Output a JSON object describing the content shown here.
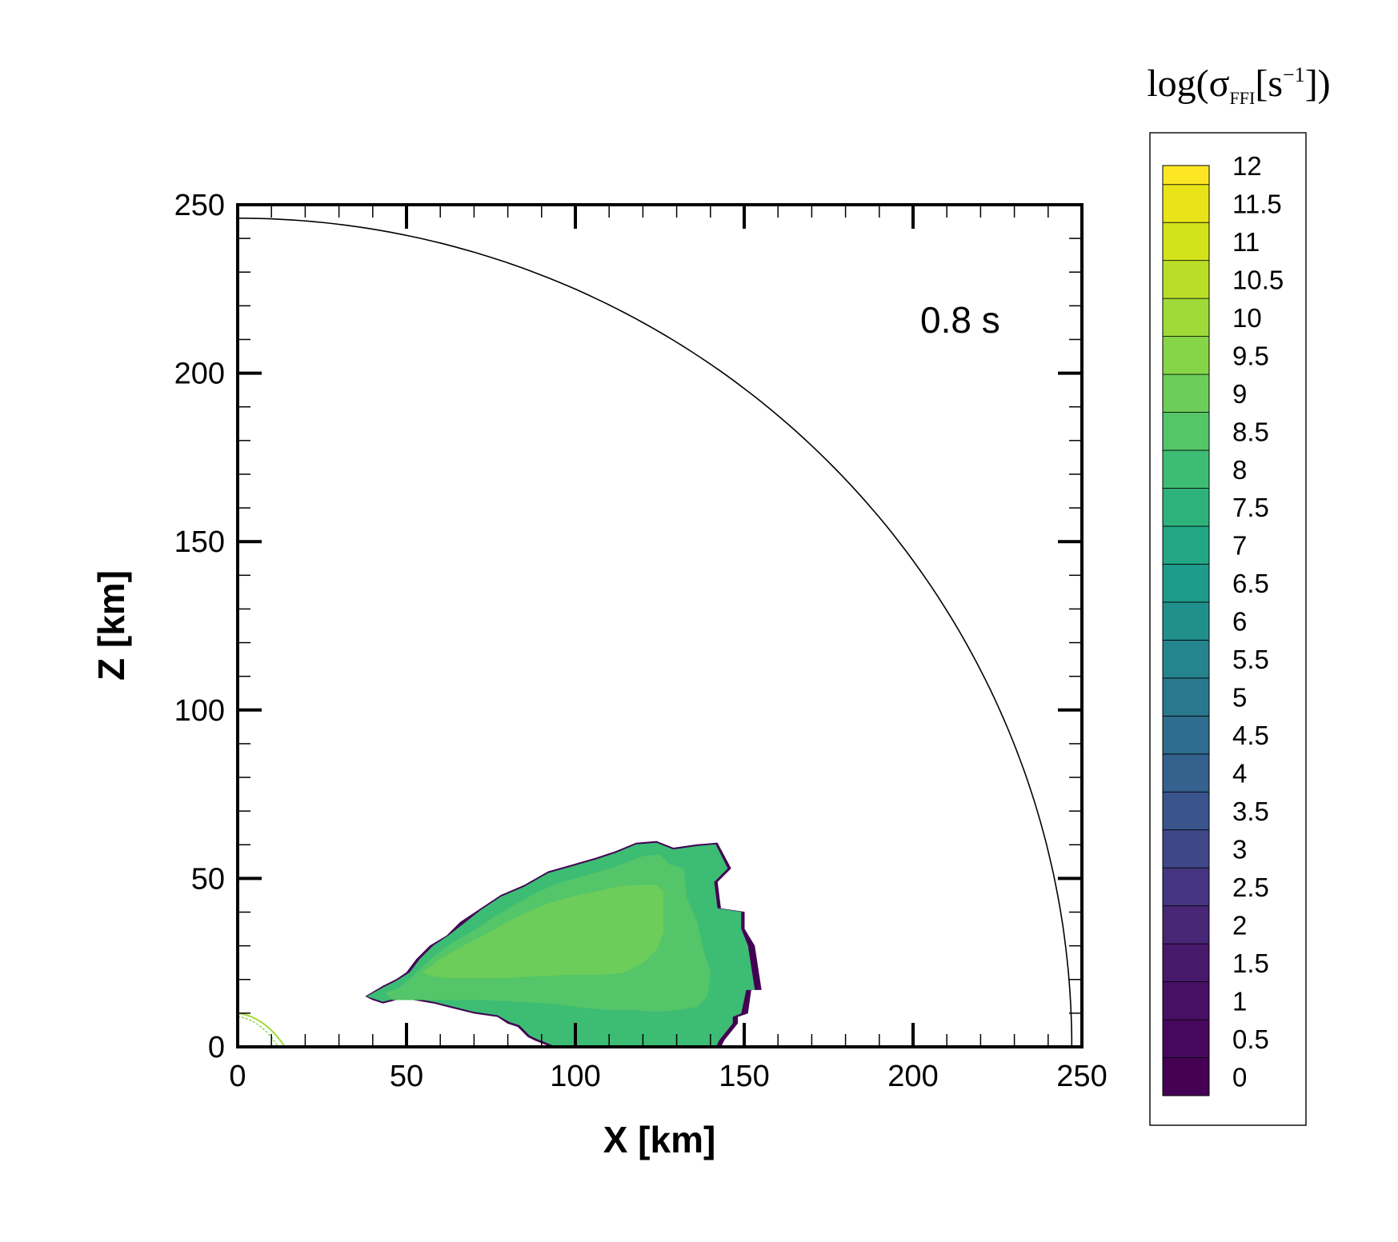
{
  "chart_data": {
    "type": "heatmap",
    "annotation": "0.8 s",
    "xlabel": "X [km]",
    "ylabel": "Z [km]",
    "xlim": [
      0,
      250
    ],
    "ylim": [
      0,
      250
    ],
    "x_ticks": [
      "0",
      "50",
      "100",
      "150",
      "200",
      "250"
    ],
    "y_ticks": [
      "0",
      "50",
      "100",
      "150",
      "200",
      "250"
    ],
    "colorbar": {
      "title": {
        "prefix": "log(",
        "sigma": "σ",
        "sub": "FFI",
        "unit_open": "[s",
        "sup": "−1",
        "unit_close": "])"
      },
      "range": [
        0,
        12.25
      ],
      "step": 0.5,
      "labels": [
        "12",
        "11.5",
        "11",
        "10.5",
        "10",
        "9.5",
        "9",
        "8.5",
        "8",
        "7.5",
        "7",
        "6.5",
        "6",
        "5.5",
        "5",
        "4.5",
        "4",
        "3.5",
        "3",
        "2.5",
        "2",
        "1.5",
        "1",
        "0.5",
        "0"
      ],
      "colors": [
        "#440154",
        "#46085c",
        "#471063",
        "#48186a",
        "#472775",
        "#453581",
        "#3f4788",
        "#3a548c",
        "#34618d",
        "#2e6d8e",
        "#2a788e",
        "#25848e",
        "#21908d",
        "#1e9b8a",
        "#22a785",
        "#2eb27c",
        "#3dbc74",
        "#54c568",
        "#6ccd5a",
        "#86d549",
        "#a0da39",
        "#bade28",
        "#d2e21b",
        "#e8e419",
        "#fde725"
      ]
    },
    "reference_curve": {
      "shape": "quarter-circle",
      "radius_x": 247,
      "radius_z": 246
    },
    "contour_regions": [
      {
        "level": 0,
        "color": "#440154",
        "boundary": [
          [
            38,
            15
          ],
          [
            43,
            18
          ],
          [
            47,
            20
          ],
          [
            50,
            22
          ],
          [
            53,
            26
          ],
          [
            57,
            30
          ],
          [
            62,
            33
          ],
          [
            66,
            37
          ],
          [
            72,
            41
          ],
          [
            78,
            45
          ],
          [
            85,
            48
          ],
          [
            92,
            52
          ],
          [
            99,
            54
          ],
          [
            106,
            56
          ],
          [
            112,
            58
          ],
          [
            118,
            60.5
          ],
          [
            124,
            61
          ],
          [
            129,
            59
          ],
          [
            136,
            60
          ],
          [
            142,
            60.5
          ],
          [
            146,
            53
          ],
          [
            142,
            49
          ],
          [
            143,
            41
          ],
          [
            150,
            40
          ],
          [
            150,
            35
          ],
          [
            153,
            30
          ],
          [
            155,
            17
          ],
          [
            152,
            17
          ],
          [
            151,
            10
          ],
          [
            148,
            9
          ],
          [
            148,
            7
          ],
          [
            144,
            2
          ],
          [
            143,
            0
          ],
          [
            93,
            0
          ],
          [
            88,
            2
          ],
          [
            86,
            3
          ],
          [
            83,
            6
          ],
          [
            80,
            7
          ],
          [
            77,
            9
          ],
          [
            70,
            10
          ],
          [
            62,
            12
          ],
          [
            58,
            13
          ],
          [
            52,
            14
          ],
          [
            47,
            14
          ],
          [
            43,
            13
          ],
          [
            40,
            14
          ]
        ]
      },
      {
        "level": 8,
        "color": "#3dbc74",
        "boundary": [
          [
            38.5,
            15
          ],
          [
            43,
            17.5
          ],
          [
            47,
            19.5
          ],
          [
            51,
            22
          ],
          [
            54,
            26
          ],
          [
            58,
            30
          ],
          [
            62.5,
            33
          ],
          [
            67,
            36.5
          ],
          [
            72,
            40.5
          ],
          [
            78,
            44.5
          ],
          [
            85,
            47.5
          ],
          [
            92,
            51.5
          ],
          [
            99,
            53.5
          ],
          [
            106,
            55.5
          ],
          [
            112,
            57.5
          ],
          [
            118,
            60
          ],
          [
            124,
            60.5
          ],
          [
            129,
            58.5
          ],
          [
            136,
            59.5
          ],
          [
            141.5,
            60
          ],
          [
            145,
            53
          ],
          [
            141,
            49
          ],
          [
            142,
            41
          ],
          [
            149,
            40
          ],
          [
            149,
            35
          ],
          [
            151,
            30
          ],
          [
            153,
            17
          ],
          [
            150.5,
            17
          ],
          [
            149,
            10
          ],
          [
            146.5,
            9
          ],
          [
            146.5,
            7
          ],
          [
            142.5,
            2
          ],
          [
            141.5,
            0
          ],
          [
            93.5,
            0.5
          ],
          [
            88.5,
            2.5
          ],
          [
            86.5,
            3.5
          ],
          [
            83.5,
            6.5
          ],
          [
            80.5,
            7.5
          ],
          [
            77,
            9.5
          ],
          [
            70,
            10.5
          ],
          [
            62,
            12.5
          ],
          [
            58,
            13.5
          ],
          [
            52,
            14.5
          ],
          [
            47,
            14.5
          ],
          [
            43,
            13.5
          ],
          [
            40,
            14.5
          ]
        ]
      },
      {
        "level": 9,
        "color": "#54c568",
        "boundary": [
          [
            44,
            16
          ],
          [
            48,
            17.5
          ],
          [
            51,
            20
          ],
          [
            55,
            24
          ],
          [
            59,
            27.5
          ],
          [
            64,
            31
          ],
          [
            70,
            34.5
          ],
          [
            76,
            38.5
          ],
          [
            82,
            42
          ],
          [
            88,
            45.5
          ],
          [
            95,
            48.5
          ],
          [
            102,
            50.5
          ],
          [
            109,
            52.5
          ],
          [
            115,
            54.5
          ],
          [
            120,
            56.5
          ],
          [
            125,
            57
          ],
          [
            128,
            54
          ],
          [
            132,
            53
          ],
          [
            133,
            44
          ],
          [
            136,
            37
          ],
          [
            138,
            28
          ],
          [
            140,
            22
          ],
          [
            139,
            15
          ],
          [
            136,
            12
          ],
          [
            130,
            11
          ],
          [
            124,
            10.5
          ],
          [
            118,
            11
          ],
          [
            110,
            11
          ],
          [
            100,
            12
          ],
          [
            92,
            13
          ],
          [
            83,
            13.5
          ],
          [
            72,
            14
          ],
          [
            61,
            14
          ],
          [
            53,
            14
          ],
          [
            49,
            14
          ],
          [
            46,
            14
          ]
        ]
      },
      {
        "level": 9.5,
        "color": "#6ccd5a",
        "boundary": [
          [
            55,
            22
          ],
          [
            60,
            26
          ],
          [
            66,
            29.5
          ],
          [
            72,
            32.5
          ],
          [
            79,
            36.5
          ],
          [
            85,
            39.5
          ],
          [
            92,
            42.5
          ],
          [
            99,
            44.5
          ],
          [
            106,
            46
          ],
          [
            113,
            47.5
          ],
          [
            119,
            48
          ],
          [
            124,
            48
          ],
          [
            126,
            46
          ],
          [
            126,
            40
          ],
          [
            126,
            34
          ],
          [
            124,
            29
          ],
          [
            120,
            25
          ],
          [
            114,
            22
          ],
          [
            107,
            21.5
          ],
          [
            98,
            21.5
          ],
          [
            88,
            21
          ],
          [
            78,
            20.5
          ],
          [
            70,
            20.5
          ],
          [
            63,
            20.5
          ],
          [
            58,
            21
          ]
        ]
      }
    ],
    "minor_feature": {
      "near": "origin",
      "x_range": [
        0,
        15
      ],
      "z_range": [
        0,
        10
      ]
    }
  }
}
